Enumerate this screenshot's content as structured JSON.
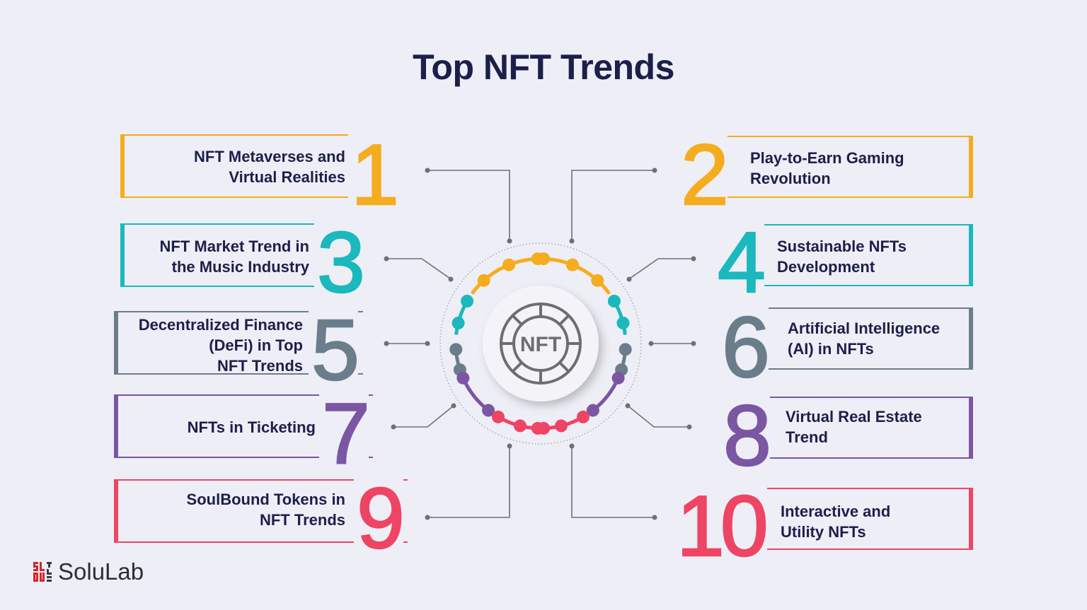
{
  "title": "Top NFT Trends",
  "center_label": "NFT",
  "brand": {
    "name": "SoluLab"
  },
  "trends": [
    {
      "number": "1",
      "lines": [
        "NFT Metaverses and",
        "Virtual Realities"
      ],
      "color": "#f5ac1e"
    },
    {
      "number": "2",
      "lines": [
        "Play-to-Earn Gaming",
        "Revolution"
      ],
      "color": "#f5ac1e"
    },
    {
      "number": "3",
      "lines": [
        "NFT Market Trend in",
        "the Music Industry"
      ],
      "color": "#1bb8bd"
    },
    {
      "number": "4",
      "lines": [
        "Sustainable NFTs",
        "Development"
      ],
      "color": "#1bb8bd"
    },
    {
      "number": "5",
      "lines": [
        "Decentralized Finance",
        "(DeFi) in Top",
        "NFT Trends"
      ],
      "color": "#6b7d8a"
    },
    {
      "number": "6",
      "lines": [
        "Artificial Intelligence",
        "(AI) in NFTs"
      ],
      "color": "#6b7d8a"
    },
    {
      "number": "7",
      "lines": [
        "NFTs in Ticketing"
      ],
      "color": "#7a56a3"
    },
    {
      "number": "8",
      "lines": [
        "Virtual Real Estate",
        "Trend"
      ],
      "color": "#7a56a3"
    },
    {
      "number": "9",
      "lines": [
        "SoulBound Tokens in",
        "NFT Trends"
      ],
      "color": "#ee4565"
    },
    {
      "number": "10",
      "lines": [
        "Interactive and",
        "Utility NFTs"
      ],
      "color": "#ee4565"
    }
  ]
}
